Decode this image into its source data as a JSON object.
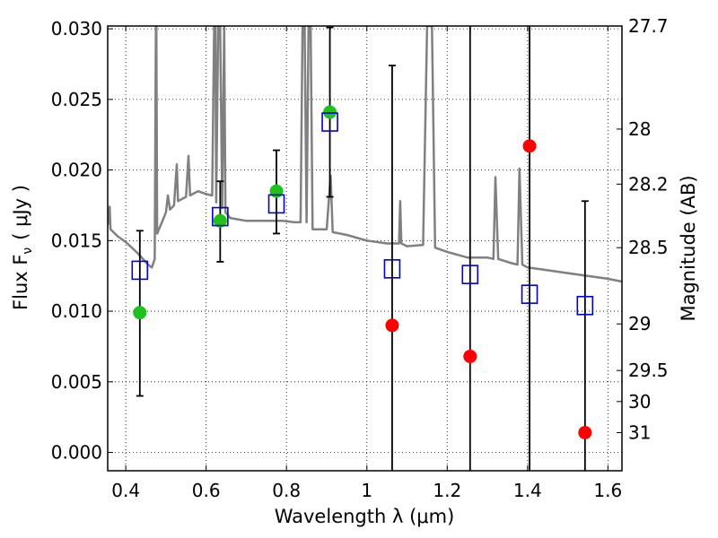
{
  "chart_data": {
    "type": "scatter",
    "xlabel": "Wavelength  λ (μm)",
    "ylabel": "Flux  F",
    "ylabel_sub": "ν",
    "ylabel_unit": "( μJy )",
    "y2label": "Magnitude (AB)",
    "xlim": [
      0.355,
      1.635
    ],
    "ylim": [
      -0.0013,
      0.0302
    ],
    "grid": true,
    "x_ticks": [
      0.4,
      0.6,
      0.8,
      1.0,
      1.2,
      1.4,
      1.6
    ],
    "x_tick_labels": [
      "0.4",
      "0.6",
      "0.8",
      "1",
      "1.2",
      "1.4",
      "1.6"
    ],
    "y_ticks": [
      0.0,
      0.005,
      0.01,
      0.015,
      0.02,
      0.025,
      0.03
    ],
    "y_tick_labels": [
      "0.000",
      "0.005",
      "0.010",
      "0.015",
      "0.020",
      "0.025",
      "0.030"
    ],
    "y2_ticks": [
      {
        "label": "27.7",
        "flux": 0.0302
      },
      {
        "label": "28",
        "flux": 0.0229
      },
      {
        "label": "28.2",
        "flux": 0.019
      },
      {
        "label": "28.5",
        "flux": 0.0145
      },
      {
        "label": "29",
        "flux": 0.0091
      },
      {
        "label": "29.5",
        "flux": 0.0058
      },
      {
        "label": "30",
        "flux": 0.0036
      },
      {
        "label": "31",
        "flux": 0.0014
      }
    ],
    "series": [
      {
        "marker": "circle",
        "color": "#1ec11e",
        "points": [
          {
            "x": 0.435,
            "y": 0.0099
          },
          {
            "x": 0.635,
            "y": 0.0164
          },
          {
            "x": 0.775,
            "y": 0.0185
          },
          {
            "x": 0.908,
            "y": 0.0241
          }
        ]
      },
      {
        "marker": "circle",
        "color": "#ff0000",
        "points": [
          {
            "x": 1.063,
            "y": 0.009
          },
          {
            "x": 1.257,
            "y": 0.0068
          },
          {
            "x": 1.405,
            "y": 0.0217
          },
          {
            "x": 1.543,
            "y": 0.0014
          }
        ]
      },
      {
        "marker": "square-open",
        "color": "#0000cc",
        "points": [
          {
            "x": 0.435,
            "y": 0.0129
          },
          {
            "x": 0.635,
            "y": 0.0167
          },
          {
            "x": 0.775,
            "y": 0.0176
          },
          {
            "x": 0.908,
            "y": 0.0234
          },
          {
            "x": 1.063,
            "y": 0.013
          },
          {
            "x": 1.257,
            "y": 0.0126
          },
          {
            "x": 1.405,
            "y": 0.0112
          },
          {
            "x": 1.543,
            "y": 0.0104
          }
        ]
      }
    ],
    "error_bars": [
      {
        "x": 0.435,
        "low": 0.004,
        "high": 0.0157,
        "cap_low": true,
        "cap_high": true
      },
      {
        "x": 0.635,
        "low": 0.0135,
        "high": 0.0192,
        "cap_low": true,
        "cap_high": true
      },
      {
        "x": 0.775,
        "low": 0.0155,
        "high": 0.0214,
        "cap_low": true,
        "cap_high": true
      },
      {
        "x": 0.908,
        "low": 0.0181,
        "high": 0.0301,
        "cap_low": true,
        "cap_high": true
      },
      {
        "x": 1.063,
        "low": -0.0013,
        "high": 0.0274,
        "cap_low": false,
        "cap_high": true
      },
      {
        "x": 1.257,
        "low": -0.0013,
        "high": 0.0302,
        "cap_low": false,
        "cap_high": false
      },
      {
        "x": 1.405,
        "low": -0.0013,
        "high": 0.0302,
        "cap_low": false,
        "cap_high": false
      },
      {
        "x": 1.543,
        "low": -0.0013,
        "high": 0.0178,
        "cap_low": false,
        "cap_high": true
      }
    ],
    "spectrum": {
      "color": "#808080",
      "points": [
        [
          0.355,
          0.0161
        ],
        [
          0.36,
          0.0174
        ],
        [
          0.362,
          0.0158
        ],
        [
          0.38,
          0.0153
        ],
        [
          0.4,
          0.0149
        ],
        [
          0.43,
          0.0141
        ],
        [
          0.455,
          0.0133
        ],
        [
          0.465,
          0.0131
        ],
        [
          0.472,
          0.0137
        ],
        [
          0.475,
          0.0302
        ],
        [
          0.476,
          0.0302
        ],
        [
          0.478,
          0.0155
        ],
        [
          0.49,
          0.0163
        ],
        [
          0.5,
          0.017
        ],
        [
          0.505,
          0.0182
        ],
        [
          0.51,
          0.0172
        ],
        [
          0.52,
          0.0175
        ],
        [
          0.527,
          0.0204
        ],
        [
          0.53,
          0.0178
        ],
        [
          0.55,
          0.0181
        ],
        [
          0.556,
          0.021
        ],
        [
          0.56,
          0.0182
        ],
        [
          0.58,
          0.0185
        ],
        [
          0.6,
          0.0183
        ],
        [
          0.615,
          0.0182
        ],
        [
          0.62,
          0.0302
        ],
        [
          0.623,
          0.0302
        ],
        [
          0.625,
          0.0177
        ],
        [
          0.63,
          0.0302
        ],
        [
          0.635,
          0.0302
        ],
        [
          0.64,
          0.0173
        ],
        [
          0.645,
          0.0302
        ],
        [
          0.648,
          0.017
        ],
        [
          0.66,
          0.0166
        ],
        [
          0.7,
          0.0164
        ],
        [
          0.74,
          0.0164
        ],
        [
          0.79,
          0.0164
        ],
        [
          0.82,
          0.0163
        ],
        [
          0.835,
          0.0163
        ],
        [
          0.84,
          0.0302
        ],
        [
          0.845,
          0.0302
        ],
        [
          0.85,
          0.0163
        ],
        [
          0.855,
          0.0302
        ],
        [
          0.86,
          0.0302
        ],
        [
          0.865,
          0.0158
        ],
        [
          0.9,
          0.0158
        ],
        [
          0.91,
          0.0196
        ],
        [
          0.915,
          0.0156
        ],
        [
          0.95,
          0.0154
        ],
        [
          1.0,
          0.015
        ],
        [
          1.05,
          0.0148
        ],
        [
          1.08,
          0.0148
        ],
        [
          1.083,
          0.0178
        ],
        [
          1.086,
          0.0148
        ],
        [
          1.1,
          0.0146
        ],
        [
          1.14,
          0.0147
        ],
        [
          1.15,
          0.0302
        ],
        [
          1.162,
          0.0302
        ],
        [
          1.17,
          0.0145
        ],
        [
          1.2,
          0.0142
        ],
        [
          1.25,
          0.0138
        ],
        [
          1.3,
          0.0138
        ],
        [
          1.315,
          0.0137
        ],
        [
          1.32,
          0.0195
        ],
        [
          1.327,
          0.0137
        ],
        [
          1.36,
          0.0134
        ],
        [
          1.375,
          0.0133
        ],
        [
          1.38,
          0.0201
        ],
        [
          1.387,
          0.0133
        ],
        [
          1.4,
          0.0131
        ],
        [
          1.45,
          0.0129
        ],
        [
          1.5,
          0.0127
        ],
        [
          1.55,
          0.0125
        ],
        [
          1.6,
          0.0123
        ],
        [
          1.635,
          0.0121
        ]
      ]
    }
  }
}
